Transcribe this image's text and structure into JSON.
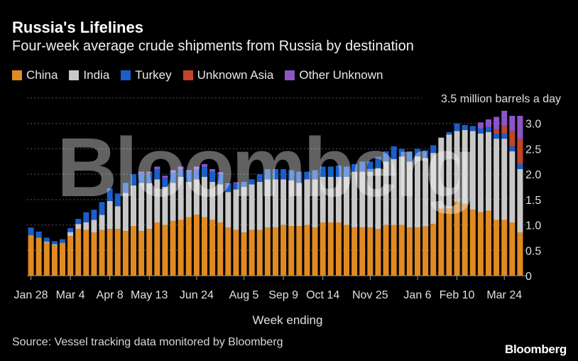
{
  "title": "Russia's Lifelines",
  "subtitle": "Four-week average crude shipments from Russia by destination",
  "legend": [
    {
      "label": "China",
      "color": "#e08a22"
    },
    {
      "label": "India",
      "color": "#c8c8c8"
    },
    {
      "label": "Turkey",
      "color": "#1a5fc8"
    },
    {
      "label": "Unknown Asia",
      "color": "#c0452a"
    },
    {
      "label": "Other Unknown",
      "color": "#8b55c8"
    }
  ],
  "xlabel": "Week ending",
  "source": "Source: Vessel tracking data monitored by Bloomberg",
  "brand": "Bloomberg",
  "watermark": "Bloomberg",
  "chart_data": {
    "type": "bar",
    "stacked": true,
    "title": "Russia's Lifelines",
    "subtitle": "Four-week average crude shipments from Russia by destination",
    "xlabel": "Week ending",
    "ylabel": "",
    "y_unit_annotation": "3.5 million barrels a day",
    "ylim": [
      0,
      3.5
    ],
    "yticks": [
      0,
      0.5,
      1.0,
      1.5,
      2.0,
      2.5,
      3.0
    ],
    "ytick_labels": [
      "0",
      "0.5",
      "1.0",
      "1.5",
      "2.0",
      "2.5",
      "3.0"
    ],
    "x_tick_labels": [
      "Jan 28",
      "Mar 4",
      "Apr 8",
      "May 13",
      "Jun 24",
      "Aug 5",
      "Sep 9",
      "Oct 14",
      "Nov 25",
      "Jan 6",
      "Feb 10",
      "Mar 24"
    ],
    "x_tick_bar_index": [
      0,
      5,
      10,
      15,
      21,
      27,
      32,
      37,
      43,
      49,
      54,
      60
    ],
    "grid": true,
    "legend_position": "top",
    "series": [
      {
        "name": "China",
        "color": "#e08a22",
        "values": [
          0.8,
          0.75,
          0.65,
          0.6,
          0.65,
          0.78,
          0.92,
          0.9,
          0.85,
          0.9,
          0.92,
          0.92,
          0.88,
          0.98,
          0.88,
          0.92,
          1.05,
          1.0,
          1.08,
          1.1,
          1.15,
          1.2,
          1.15,
          1.1,
          1.05,
          0.95,
          0.9,
          0.85,
          0.9,
          0.9,
          0.95,
          0.95,
          1.0,
          0.98,
          0.98,
          1.0,
          0.95,
          1.05,
          1.05,
          1.05,
          1.0,
          0.95,
          0.95,
          0.95,
          0.92,
          1.0,
          1.0,
          1.0,
          0.95,
          0.95,
          0.97,
          1.02,
          1.32,
          1.33,
          1.45,
          1.42,
          1.3,
          1.25,
          1.28,
          1.1,
          1.1,
          1.05,
          0.85
        ]
      },
      {
        "name": "India",
        "color": "#c8c8c8",
        "values": [
          0.0,
          0.0,
          0.02,
          0.02,
          0.0,
          0.08,
          0.1,
          0.15,
          0.25,
          0.3,
          0.55,
          0.45,
          0.75,
          0.8,
          0.95,
          0.9,
          0.85,
          0.75,
          0.75,
          0.85,
          0.7,
          0.7,
          0.8,
          0.75,
          0.75,
          0.7,
          0.8,
          0.9,
          0.9,
          0.95,
          0.95,
          0.95,
          0.9,
          0.9,
          0.85,
          0.9,
          0.95,
          0.9,
          0.9,
          0.9,
          0.95,
          1.1,
          1.1,
          1.1,
          1.2,
          1.25,
          1.3,
          1.35,
          1.3,
          1.4,
          1.35,
          1.4,
          1.4,
          1.45,
          1.4,
          1.45,
          1.55,
          1.55,
          1.55,
          1.6,
          1.6,
          1.4,
          1.25
        ]
      },
      {
        "name": "Turkey",
        "color": "#1a5fc8",
        "values": [
          0.15,
          0.12,
          0.08,
          0.06,
          0.07,
          0.08,
          0.1,
          0.2,
          0.2,
          0.25,
          0.25,
          0.25,
          0.2,
          0.22,
          0.2,
          0.2,
          0.2,
          0.18,
          0.2,
          0.15,
          0.2,
          0.2,
          0.2,
          0.2,
          0.2,
          0.15,
          0.12,
          0.1,
          0.1,
          0.15,
          0.2,
          0.2,
          0.2,
          0.2,
          0.22,
          0.15,
          0.18,
          0.2,
          0.2,
          0.22,
          0.2,
          0.15,
          0.2,
          0.2,
          0.22,
          0.2,
          0.25,
          0.15,
          0.2,
          0.15,
          0.15,
          0.15,
          0.0,
          0.05,
          0.15,
          0.1,
          0.1,
          0.1,
          0.1,
          0.1,
          0.1,
          0.1,
          0.1
        ]
      },
      {
        "name": "Unknown Asia",
        "color": "#c0452a",
        "values": [
          0,
          0,
          0,
          0,
          0,
          0,
          0,
          0,
          0,
          0,
          0,
          0,
          0,
          0,
          0,
          0,
          0,
          0,
          0,
          0,
          0,
          0,
          0,
          0,
          0,
          0,
          0,
          0,
          0,
          0,
          0,
          0,
          0,
          0,
          0,
          0,
          0,
          0,
          0,
          0,
          0,
          0,
          0,
          0,
          0,
          0,
          0,
          0,
          0,
          0,
          0,
          0,
          0,
          0,
          0,
          0,
          0,
          0,
          0,
          0.08,
          0.15,
          0.3,
          0.5
        ]
      },
      {
        "name": "Other Unknown",
        "color": "#8b55c8",
        "values": [
          0,
          0,
          0,
          0,
          0,
          0,
          0,
          0,
          0,
          0,
          0,
          0,
          0,
          0,
          0.02,
          0.03,
          0.05,
          0.04,
          0.05,
          0.05,
          0.03,
          0.05,
          0.05,
          0.05,
          0.04,
          0.02,
          0.02,
          0,
          0,
          0,
          0,
          0,
          0,
          0,
          0,
          0,
          0,
          0,
          0,
          0,
          0,
          0,
          0,
          0,
          0,
          0,
          0,
          0,
          0,
          0,
          0,
          0,
          0,
          0,
          0,
          0,
          0,
          0.12,
          0.15,
          0.25,
          0.3,
          0.3,
          0.45
        ]
      }
    ]
  }
}
